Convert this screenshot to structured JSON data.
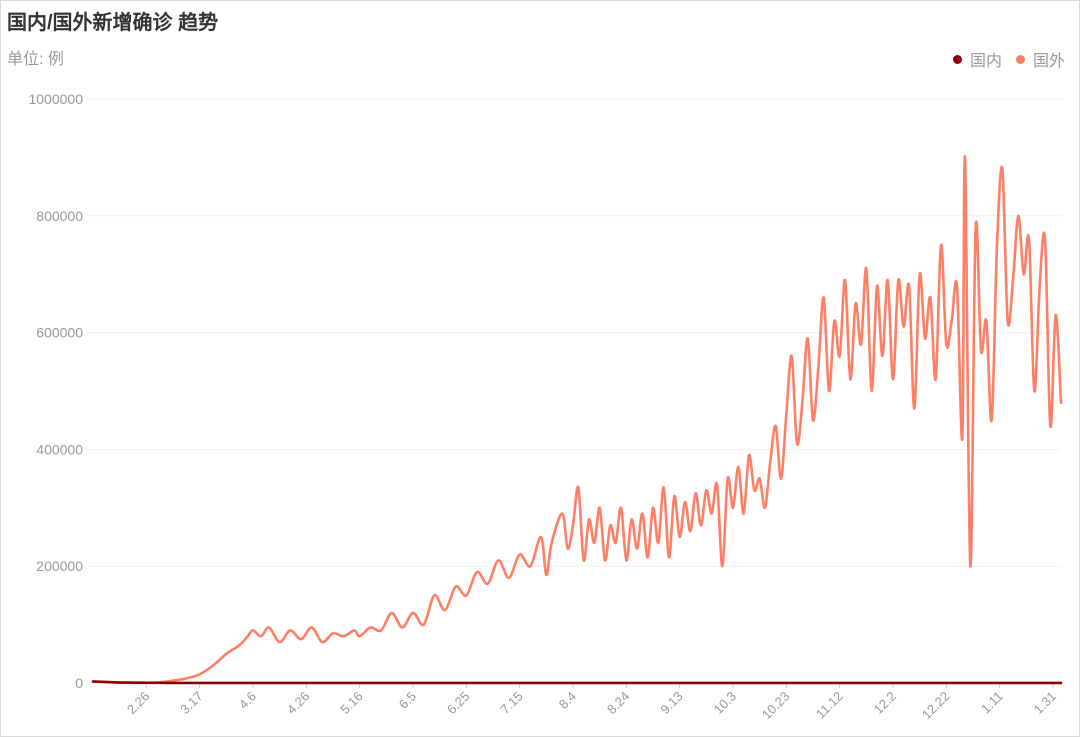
{
  "title": "国内/国外新增确诊 趋势",
  "unit_label": "单位: 例",
  "colors": {
    "domestic": "#8b0000",
    "foreign": "#ff7f66",
    "grid": "#f1f1f1",
    "axis": "#999999"
  },
  "chart_data": {
    "type": "line",
    "title": "国内/国外新增确诊 趋势",
    "ylabel": "单位: 例",
    "ylim": [
      0,
      1000000
    ],
    "yticks": [
      "1000000",
      "800000",
      "600000",
      "400000",
      "200000",
      "0"
    ],
    "ytick_values": [
      1000000,
      800000,
      600000,
      400000,
      200000,
      0
    ],
    "xticks": [
      "2.26",
      "3.17",
      "4.6",
      "4.26",
      "5.16",
      "6.5",
      "6.25",
      "7.15",
      "8.4",
      "8.24",
      "9.13",
      "10.3",
      "10.23",
      "11.12",
      "12.2",
      "12.22",
      "1.11",
      "1.31"
    ],
    "xtick_index": [
      20,
      40,
      60,
      80,
      100,
      120,
      140,
      160,
      180,
      200,
      220,
      240,
      260,
      280,
      300,
      320,
      340,
      360
    ],
    "x_count": 364,
    "grid": true,
    "legend_position": "top-right",
    "series": [
      {
        "name": "国内",
        "key": "domestic",
        "anchors": [
          [
            0,
            2500
          ],
          [
            10,
            800
          ],
          [
            30,
            100
          ],
          [
            363,
            100
          ]
        ]
      },
      {
        "name": "国外",
        "key": "foreign",
        "anchors": [
          [
            0,
            3000
          ],
          [
            10,
            800
          ],
          [
            20,
            400
          ],
          [
            25,
            1200
          ],
          [
            30,
            4000
          ],
          [
            35,
            8000
          ],
          [
            40,
            15000
          ],
          [
            45,
            30000
          ],
          [
            50,
            50000
          ],
          [
            55,
            65000
          ],
          [
            58,
            80000
          ],
          [
            60,
            90000
          ],
          [
            63,
            80000
          ],
          [
            66,
            95000
          ],
          [
            70,
            70000
          ],
          [
            74,
            90000
          ],
          [
            78,
            75000
          ],
          [
            82,
            95000
          ],
          [
            86,
            70000
          ],
          [
            90,
            85000
          ],
          [
            94,
            80000
          ],
          [
            98,
            90000
          ],
          [
            100,
            80000
          ],
          [
            104,
            95000
          ],
          [
            108,
            90000
          ],
          [
            112,
            120000
          ],
          [
            116,
            95000
          ],
          [
            120,
            120000
          ],
          [
            124,
            100000
          ],
          [
            128,
            150000
          ],
          [
            132,
            125000
          ],
          [
            136,
            165000
          ],
          [
            140,
            150000
          ],
          [
            144,
            190000
          ],
          [
            148,
            170000
          ],
          [
            152,
            210000
          ],
          [
            156,
            180000
          ],
          [
            160,
            220000
          ],
          [
            164,
            200000
          ],
          [
            168,
            250000
          ],
          [
            170,
            185000
          ],
          [
            172,
            240000
          ],
          [
            176,
            290000
          ],
          [
            178,
            230000
          ],
          [
            180,
            270000
          ],
          [
            182,
            335000
          ],
          [
            184,
            210000
          ],
          [
            186,
            280000
          ],
          [
            188,
            240000
          ],
          [
            190,
            300000
          ],
          [
            192,
            210000
          ],
          [
            194,
            270000
          ],
          [
            196,
            240000
          ],
          [
            198,
            300000
          ],
          [
            200,
            210000
          ],
          [
            202,
            280000
          ],
          [
            204,
            230000
          ],
          [
            206,
            290000
          ],
          [
            208,
            215000
          ],
          [
            210,
            300000
          ],
          [
            212,
            240000
          ],
          [
            214,
            335000
          ],
          [
            216,
            215000
          ],
          [
            218,
            320000
          ],
          [
            220,
            250000
          ],
          [
            222,
            310000
          ],
          [
            224,
            260000
          ],
          [
            226,
            325000
          ],
          [
            228,
            270000
          ],
          [
            230,
            330000
          ],
          [
            232,
            290000
          ],
          [
            234,
            340000
          ],
          [
            236,
            200000
          ],
          [
            238,
            350000
          ],
          [
            240,
            300000
          ],
          [
            242,
            370000
          ],
          [
            244,
            290000
          ],
          [
            246,
            390000
          ],
          [
            248,
            330000
          ],
          [
            250,
            350000
          ],
          [
            252,
            300000
          ],
          [
            254,
            380000
          ],
          [
            256,
            440000
          ],
          [
            258,
            350000
          ],
          [
            260,
            460000
          ],
          [
            262,
            560000
          ],
          [
            264,
            410000
          ],
          [
            266,
            480000
          ],
          [
            268,
            590000
          ],
          [
            270,
            450000
          ],
          [
            272,
            540000
          ],
          [
            274,
            660000
          ],
          [
            276,
            500000
          ],
          [
            278,
            620000
          ],
          [
            280,
            560000
          ],
          [
            282,
            690000
          ],
          [
            284,
            520000
          ],
          [
            286,
            650000
          ],
          [
            288,
            580000
          ],
          [
            290,
            710000
          ],
          [
            292,
            500000
          ],
          [
            294,
            680000
          ],
          [
            296,
            560000
          ],
          [
            298,
            690000
          ],
          [
            300,
            520000
          ],
          [
            302,
            690000
          ],
          [
            304,
            610000
          ],
          [
            306,
            680000
          ],
          [
            308,
            470000
          ],
          [
            310,
            700000
          ],
          [
            312,
            590000
          ],
          [
            314,
            660000
          ],
          [
            316,
            520000
          ],
          [
            318,
            750000
          ],
          [
            320,
            580000
          ],
          [
            322,
            620000
          ],
          [
            324,
            680000
          ],
          [
            326,
            420000
          ],
          [
            327,
            900000
          ],
          [
            329,
            200000
          ],
          [
            331,
            780000
          ],
          [
            333,
            570000
          ],
          [
            335,
            620000
          ],
          [
            337,
            450000
          ],
          [
            339,
            750000
          ],
          [
            341,
            880000
          ],
          [
            343,
            620000
          ],
          [
            345,
            690000
          ],
          [
            347,
            800000
          ],
          [
            349,
            700000
          ],
          [
            351,
            760000
          ],
          [
            353,
            500000
          ],
          [
            355,
            680000
          ],
          [
            357,
            760000
          ],
          [
            359,
            440000
          ],
          [
            361,
            630000
          ],
          [
            363,
            480000
          ]
        ]
      }
    ]
  }
}
